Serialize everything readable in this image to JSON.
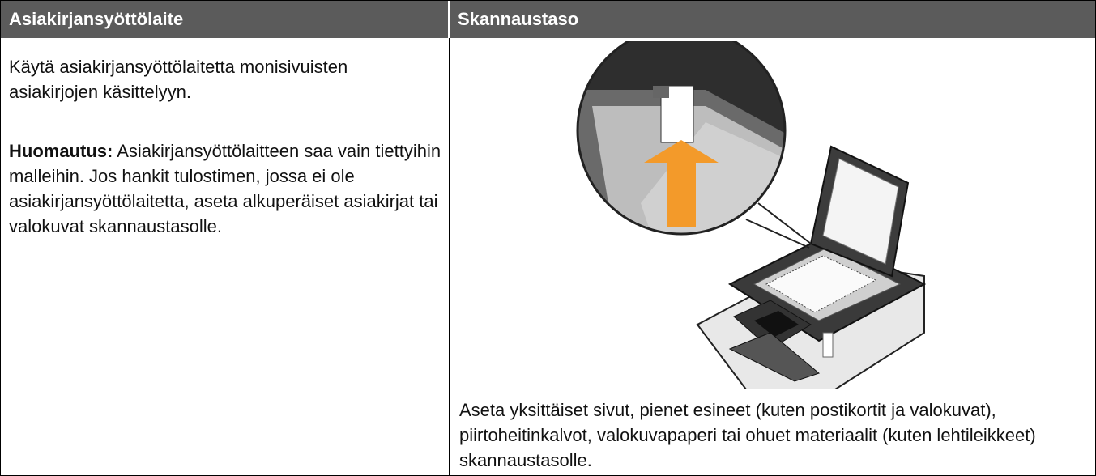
{
  "header": {
    "cells": [
      "Asiakirjansyöttölaite",
      "Skannaustaso"
    ]
  },
  "left": {
    "paragraph": "Käytä asiakirjansyöttölaitetta monisivuisten asiakirjojen käsittelyyn.",
    "note_label": "Huomautus:",
    "note_text": "Asiakirjansyöttölaitteen saa vain tiettyihin malleihin. Jos hankit tulostimen, jossa ei ole asiakirjansyöttölaitetta, aseta alkuperäiset asiakirjat tai valokuvat skannaustasolle."
  },
  "right": {
    "caption": "Aseta yksittäiset sivut, pienet esineet (kuten postikortit ja valokuvat), piirtoheitinkalvot, valokuvapaperi tai ohuet materiaalit (kuten lehtileikkeet) skannaustasolle."
  }
}
